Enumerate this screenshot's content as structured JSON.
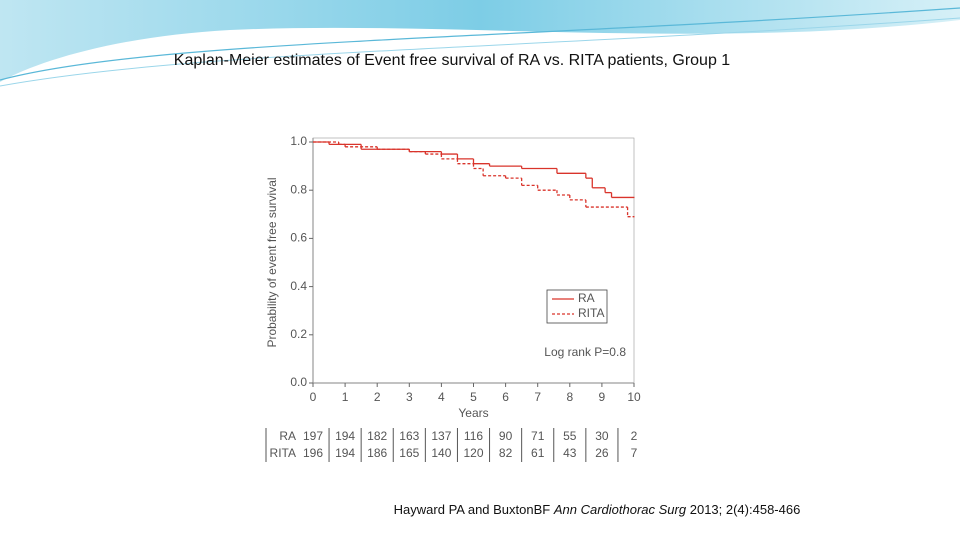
{
  "slide": {
    "title": "Kaplan-Meier estimates of Event free survival of RA vs. RITA patients, Group 1",
    "citation": {
      "authors": "Hayward PA and BuxtonBF",
      "journal": "Ann Cardiothorac Surg",
      "details": "2013; 2(4):458-466"
    }
  },
  "chart_data": {
    "type": "step",
    "x_label": "Years",
    "y_label": "Probability of event free survival",
    "xlim": [
      0,
      10
    ],
    "ylim": [
      0,
      1
    ],
    "xticks": [
      0,
      1,
      2,
      3,
      4,
      5,
      6,
      7,
      8,
      9,
      10
    ],
    "yticks": [
      {
        "value": 0,
        "label": "0.0"
      },
      0.2,
      0.4,
      0.6,
      0.8,
      {
        "value": 1,
        "label": "1.0"
      }
    ],
    "annotation": "Log rank P=0.8",
    "legend": "right",
    "series": [
      {
        "name": "RA",
        "color": "#d9342b",
        "dash": false,
        "x": [
          0,
          0.5,
          1.5,
          3,
          4,
          4.5,
          5,
          5.5,
          6.5,
          7.6,
          8.5,
          8.7,
          9.1,
          9.3,
          10
        ],
        "values": [
          1,
          0.99,
          0.97,
          0.96,
          0.95,
          0.93,
          0.91,
          0.9,
          0.89,
          0.87,
          0.85,
          0.81,
          0.79,
          0.77,
          0.77
        ]
      },
      {
        "name": "RITA",
        "color": "#d9342b",
        "dash": true,
        "x": [
          0,
          0.8,
          1,
          2,
          3,
          3.5,
          4,
          4.5,
          5,
          5.3,
          6,
          6.5,
          7,
          7.6,
          8,
          8.5,
          9.8,
          10
        ],
        "values": [
          1,
          0.99,
          0.98,
          0.97,
          0.96,
          0.95,
          0.93,
          0.91,
          0.89,
          0.86,
          0.85,
          0.82,
          0.8,
          0.78,
          0.76,
          0.73,
          0.69,
          0.69
        ]
      }
    ],
    "risk_table": {
      "rows": [
        {
          "label": "RA",
          "values": [
            197,
            194,
            182,
            163,
            137,
            116,
            90,
            71,
            55,
            30,
            2
          ]
        },
        {
          "label": "RITA",
          "values": [
            196,
            194,
            186,
            165,
            140,
            120,
            82,
            61,
            43,
            26,
            7
          ]
        }
      ]
    }
  }
}
